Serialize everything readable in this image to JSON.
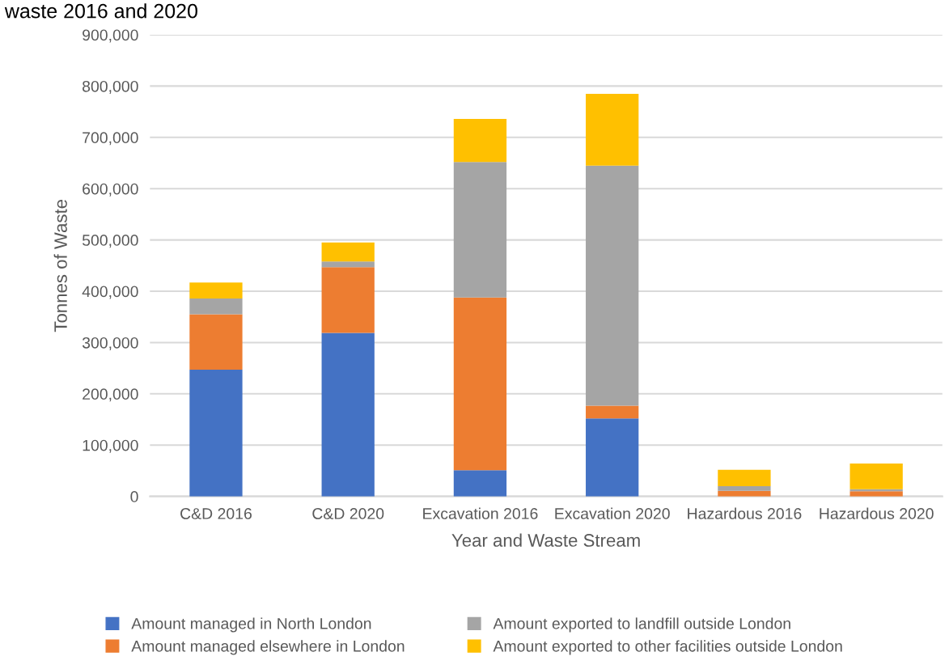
{
  "chart_data": {
    "type": "bar",
    "stacked": true,
    "title": "waste 2016 and 2020",
    "xlabel": "Year and Waste Stream",
    "ylabel": "Tonnes of Waste",
    "categories": [
      "C&D 2016",
      "C&D 2020",
      "Excavation 2016",
      "Excavation 2020",
      "Hazardous 2016",
      "Hazardous 2020"
    ],
    "series": [
      {
        "name": "Amount managed in North London",
        "color": "#4472c4",
        "values": [
          247000,
          319000,
          51000,
          152000,
          0,
          0
        ]
      },
      {
        "name": "Amount managed elsewhere in London",
        "color": "#ed7d31",
        "values": [
          108000,
          128000,
          337000,
          25000,
          11000,
          10000
        ]
      },
      {
        "name": "Amount exported to landfill outside London",
        "color": "#a5a5a5",
        "values": [
          31000,
          11000,
          264000,
          468000,
          9000,
          4000
        ]
      },
      {
        "name": "Amount exported to other facilities outside London",
        "color": "#ffc000",
        "values": [
          31000,
          37000,
          84000,
          140000,
          32000,
          50000
        ]
      }
    ],
    "ylim": [
      0,
      900000
    ],
    "yticks": [
      {
        "value": 0,
        "label": "0"
      },
      {
        "value": 100000,
        "label": "100,000"
      },
      {
        "value": 200000,
        "label": "200,000"
      },
      {
        "value": 300000,
        "label": "300,000"
      },
      {
        "value": 400000,
        "label": "400,000"
      },
      {
        "value": 500000,
        "label": "500,000"
      },
      {
        "value": 600000,
        "label": "600,000"
      },
      {
        "value": 700000,
        "label": "700,000"
      },
      {
        "value": 800000,
        "label": "800,000"
      },
      {
        "value": 900000,
        "label": "900,000"
      }
    ],
    "grid": "y",
    "legend": "bottom"
  }
}
